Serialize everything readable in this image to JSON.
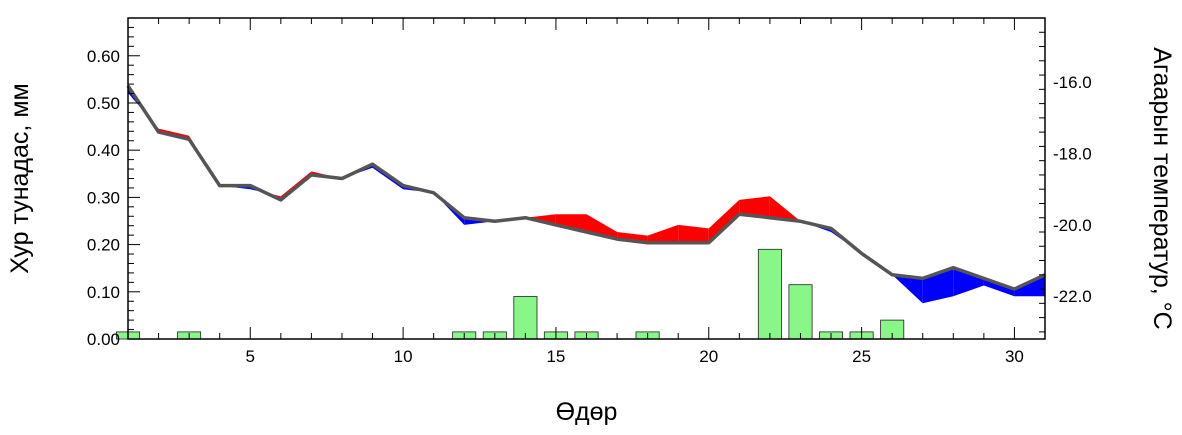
{
  "chart_data": {
    "type": "area",
    "xlabel": "Өдөр",
    "ylabel_left": "Хур тунадас, мм",
    "ylabel_right": "Агаарын температур, °С",
    "xlim": [
      1,
      31
    ],
    "ylim_left": [
      0,
      0.68
    ],
    "ylim_right": [
      -23.2,
      -14.2
    ],
    "x_ticks": [
      5,
      10,
      15,
      20,
      25,
      30
    ],
    "y_left_ticks": [
      0.0,
      0.1,
      0.2,
      0.3,
      0.4,
      0.5,
      0.6
    ],
    "y_left_tick_labels": [
      "0.00",
      "0.10",
      "0.20",
      "0.30",
      "0.40",
      "0.50",
      "0.60"
    ],
    "y_right_ticks": [
      -22,
      -20,
      -18,
      -16
    ],
    "y_right_tick_labels": [
      "-22.0",
      "-20.0",
      "-18.0",
      "-16.0"
    ],
    "colors": {
      "above": "#ff0000",
      "below": "#0000ff",
      "reference_line": "#555555",
      "bars": "#88f788",
      "bar_edge": "#222222"
    },
    "series": [
      {
        "axis": "right",
        "kind": "line",
        "x": [
          1,
          2,
          3,
          4,
          5,
          6,
          7,
          8,
          9,
          10,
          11,
          12,
          13,
          14,
          15,
          16,
          17,
          18,
          19,
          20,
          21,
          22,
          23,
          24,
          25,
          26,
          27,
          28,
          29,
          30,
          31
        ],
        "values": [
          -16.1,
          -17.4,
          -17.6,
          -18.9,
          -18.9,
          -19.3,
          -18.6,
          -18.7,
          -18.3,
          -18.9,
          -19.1,
          -19.8,
          -19.9,
          -19.8,
          -20.0,
          -20.2,
          -20.4,
          -20.5,
          -20.5,
          -20.5,
          -19.7,
          -19.8,
          -19.9,
          -20.1,
          -20.8,
          -21.4,
          -21.5,
          -21.2,
          -21.5,
          -21.8,
          -21.4
        ]
      },
      {
        "axis": "right",
        "kind": "line",
        "x": [
          1,
          2,
          3,
          4,
          5,
          6,
          7,
          8,
          9,
          10,
          11,
          12,
          13,
          14,
          15,
          16,
          17,
          18,
          19,
          20,
          21,
          22,
          23,
          24,
          25,
          26,
          27,
          28,
          29,
          30,
          31
        ],
        "values": [
          -16.3,
          -17.3,
          -17.5,
          -18.9,
          -19.0,
          -19.2,
          -18.5,
          -18.7,
          -18.4,
          -19.0,
          -19.1,
          -20.0,
          -19.9,
          -19.8,
          -19.7,
          -19.7,
          -20.2,
          -20.3,
          -20.0,
          -20.1,
          -19.3,
          -19.2,
          -19.9,
          -20.2,
          -20.8,
          -21.4,
          -22.2,
          -22.0,
          -21.7,
          -22.0,
          -22.0
        ]
      },
      {
        "axis": "left",
        "kind": "bar",
        "x": [
          1,
          2,
          3,
          4,
          5,
          6,
          7,
          8,
          9,
          10,
          11,
          12,
          13,
          14,
          15,
          16,
          17,
          18,
          19,
          20,
          21,
          22,
          23,
          24,
          25,
          26,
          27,
          28,
          29,
          30,
          31
        ],
        "values": [
          0.015,
          0,
          0.015,
          0,
          0,
          0,
          0,
          0,
          0,
          0,
          0,
          0.015,
          0.015,
          0.09,
          0.015,
          0.015,
          0,
          0.015,
          0,
          0,
          0,
          0.19,
          0.115,
          0.015,
          0.015,
          0.04,
          0,
          0,
          0,
          0,
          0
        ]
      }
    ]
  }
}
